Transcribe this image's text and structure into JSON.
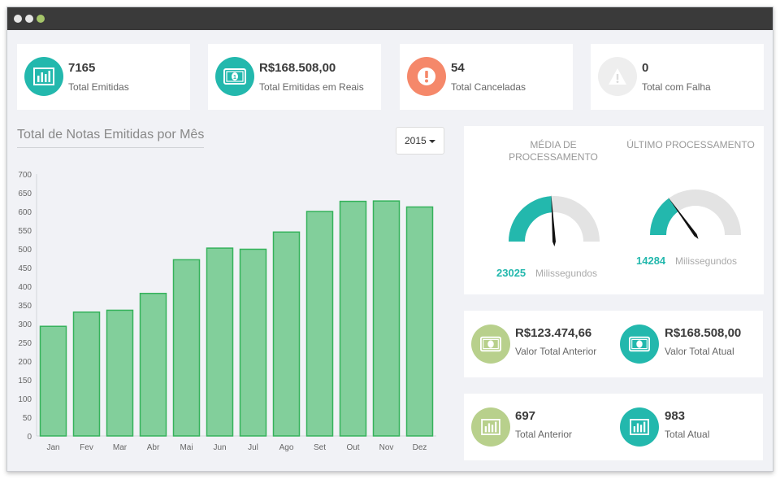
{
  "stats": [
    {
      "value": "7165",
      "label": "Total Emitidas",
      "icon": "bar-chart-icon",
      "color": "#23b8ad"
    },
    {
      "value": "R$168.508,00",
      "label": "Total Emitidas em Reais",
      "icon": "money-icon",
      "color": "#23b8ad"
    },
    {
      "value": "54",
      "label": "Total Canceladas",
      "icon": "exclamation-icon",
      "color": "#f5886a"
    },
    {
      "value": "0",
      "label": "Total com Falha",
      "icon": "warning-icon",
      "color": "#eeeeee"
    }
  ],
  "chart_title": "Total de Notas Emitidas por Mês",
  "year_select": {
    "value": "2015"
  },
  "chart_data": {
    "type": "bar",
    "title": "Total de Notas Emitidas por Mês",
    "categories": [
      "Jan",
      "Fev",
      "Mar",
      "Abr",
      "Mai",
      "Jun",
      "Jul",
      "Ago",
      "Set",
      "Out",
      "Nov",
      "Dez"
    ],
    "values": [
      293,
      331,
      336,
      381,
      471,
      502,
      499,
      545,
      600,
      627,
      628,
      612
    ],
    "yticks": [
      0,
      50,
      100,
      150,
      200,
      250,
      300,
      350,
      400,
      450,
      500,
      550,
      600,
      650,
      700
    ],
    "ylim": [
      0,
      700
    ],
    "xlabel": "",
    "ylabel": "",
    "bar_color": "#82cf9b",
    "bar_border": "#35b25b",
    "grid": false
  },
  "gauges": [
    {
      "title": "MÉDIA DE PROCESSAMENTO",
      "value": "23025",
      "unit": "Milissegundos",
      "fraction": 0.48
    },
    {
      "title": "ÚLTIMO PROCESSAMENTO",
      "value": "14284",
      "unit": "Milissegundos",
      "fraction": 0.3
    }
  ],
  "mini_cards": [
    {
      "value": "R$123.474,66",
      "label": "Valor Total Anterior",
      "icon": "money-icon",
      "color": "#b8d08c"
    },
    {
      "value": "R$168.508,00",
      "label": "Valor Total Atual",
      "icon": "money-icon",
      "color": "#23b8ad"
    },
    {
      "value": "697",
      "label": "Total Anterior",
      "icon": "bar-chart-icon",
      "color": "#b8d08c"
    },
    {
      "value": "983",
      "label": "Total Atual",
      "icon": "bar-chart-icon",
      "color": "#23b8ad"
    }
  ]
}
